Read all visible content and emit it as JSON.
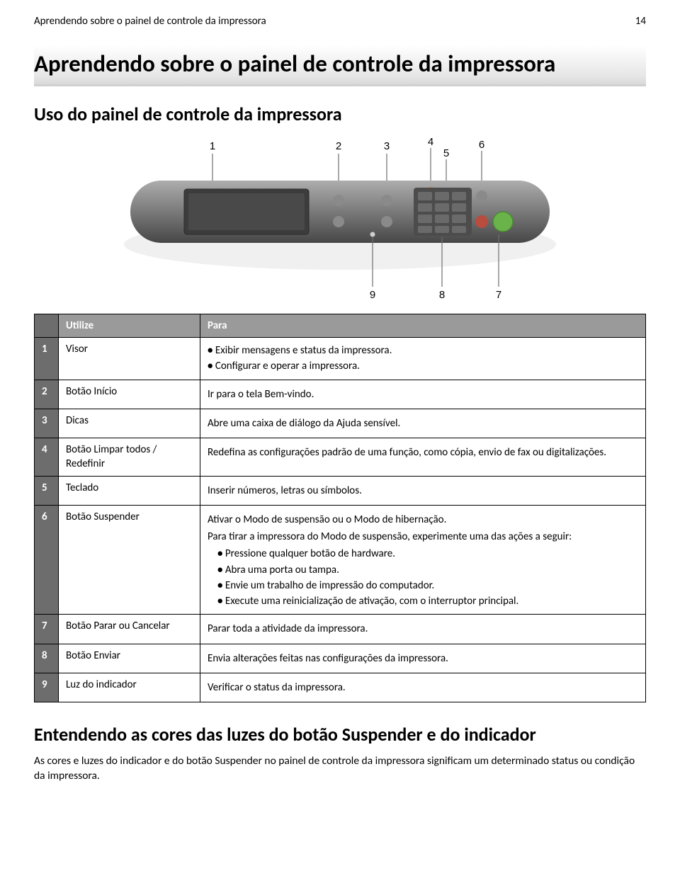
{
  "running_header": {
    "title": "Aprendendo sobre o painel de controle da impressora",
    "page_number": "14"
  },
  "heading1": "Aprendendo sobre o painel de controle da impressora",
  "heading2a": "Uso do painel de controle da impressora",
  "diagram": {
    "callouts": [
      "1",
      "2",
      "3",
      "4",
      "5",
      "6",
      "7",
      "8",
      "9"
    ],
    "panel_fill": "#767676",
    "panel_dark": "#5a5a5a",
    "screen_fill": "#3c3c3c",
    "keypad_fill": "#4c4c4c",
    "green_btn": "#6ab24a",
    "red_btn": "#b84c3f",
    "orange_btn": "#c58b3e",
    "gray_btn": "#8a8a8a",
    "line_color": "#6d6d6d"
  },
  "table": {
    "headers": {
      "index": "",
      "utilize": "Utilize",
      "para": "Para"
    },
    "rows": [
      {
        "n": "1",
        "utilize": "Visor",
        "para_bullets": [
          "Exibir mensagens e status da impressora.",
          "Configurar e operar a impressora."
        ]
      },
      {
        "n": "2",
        "utilize": "Botão Início",
        "para_text": "Ir para o tela Bem-vindo."
      },
      {
        "n": "3",
        "utilize": "Dicas",
        "para_text": "Abre uma caixa de diálogo da Ajuda sensível."
      },
      {
        "n": "4",
        "utilize": "Botão Limpar todos / Redefinir",
        "para_text": "Redefina as configurações padrão de uma função, como cópia, envio de fax ou digitalizações."
      },
      {
        "n": "5",
        "utilize": "Teclado",
        "para_text": "Inserir números, letras ou símbolos."
      },
      {
        "n": "6",
        "utilize": "Botão Suspender",
        "para_text": "Ativar o Modo de suspensão ou o Modo de hibernação.",
        "para_followup": "Para tirar a impressora do Modo de suspensão, experimente uma das ações a seguir:",
        "para_sub_bullets": [
          "Pressione qualquer botão de hardware.",
          "Abra uma porta ou tampa.",
          "Envie um trabalho de impressão do computador.",
          "Execute uma reinicialização de ativação, com o interruptor principal."
        ]
      },
      {
        "n": "7",
        "utilize": "Botão Parar ou Cancelar",
        "para_text": "Parar toda a atividade da impressora."
      },
      {
        "n": "8",
        "utilize": "Botão Enviar",
        "para_text": "Envia alterações feitas nas configurações da impressora."
      },
      {
        "n": "9",
        "utilize": "Luz do indicador",
        "para_text": "Verificar o status da impressora."
      }
    ]
  },
  "heading2b": "Entendendo as cores das luzes do botão Suspender e do indicador",
  "body_para": "As cores e luzes do indicador e do botão Suspender no painel de controle da impressora significam um determinado status ou condição da impressora."
}
